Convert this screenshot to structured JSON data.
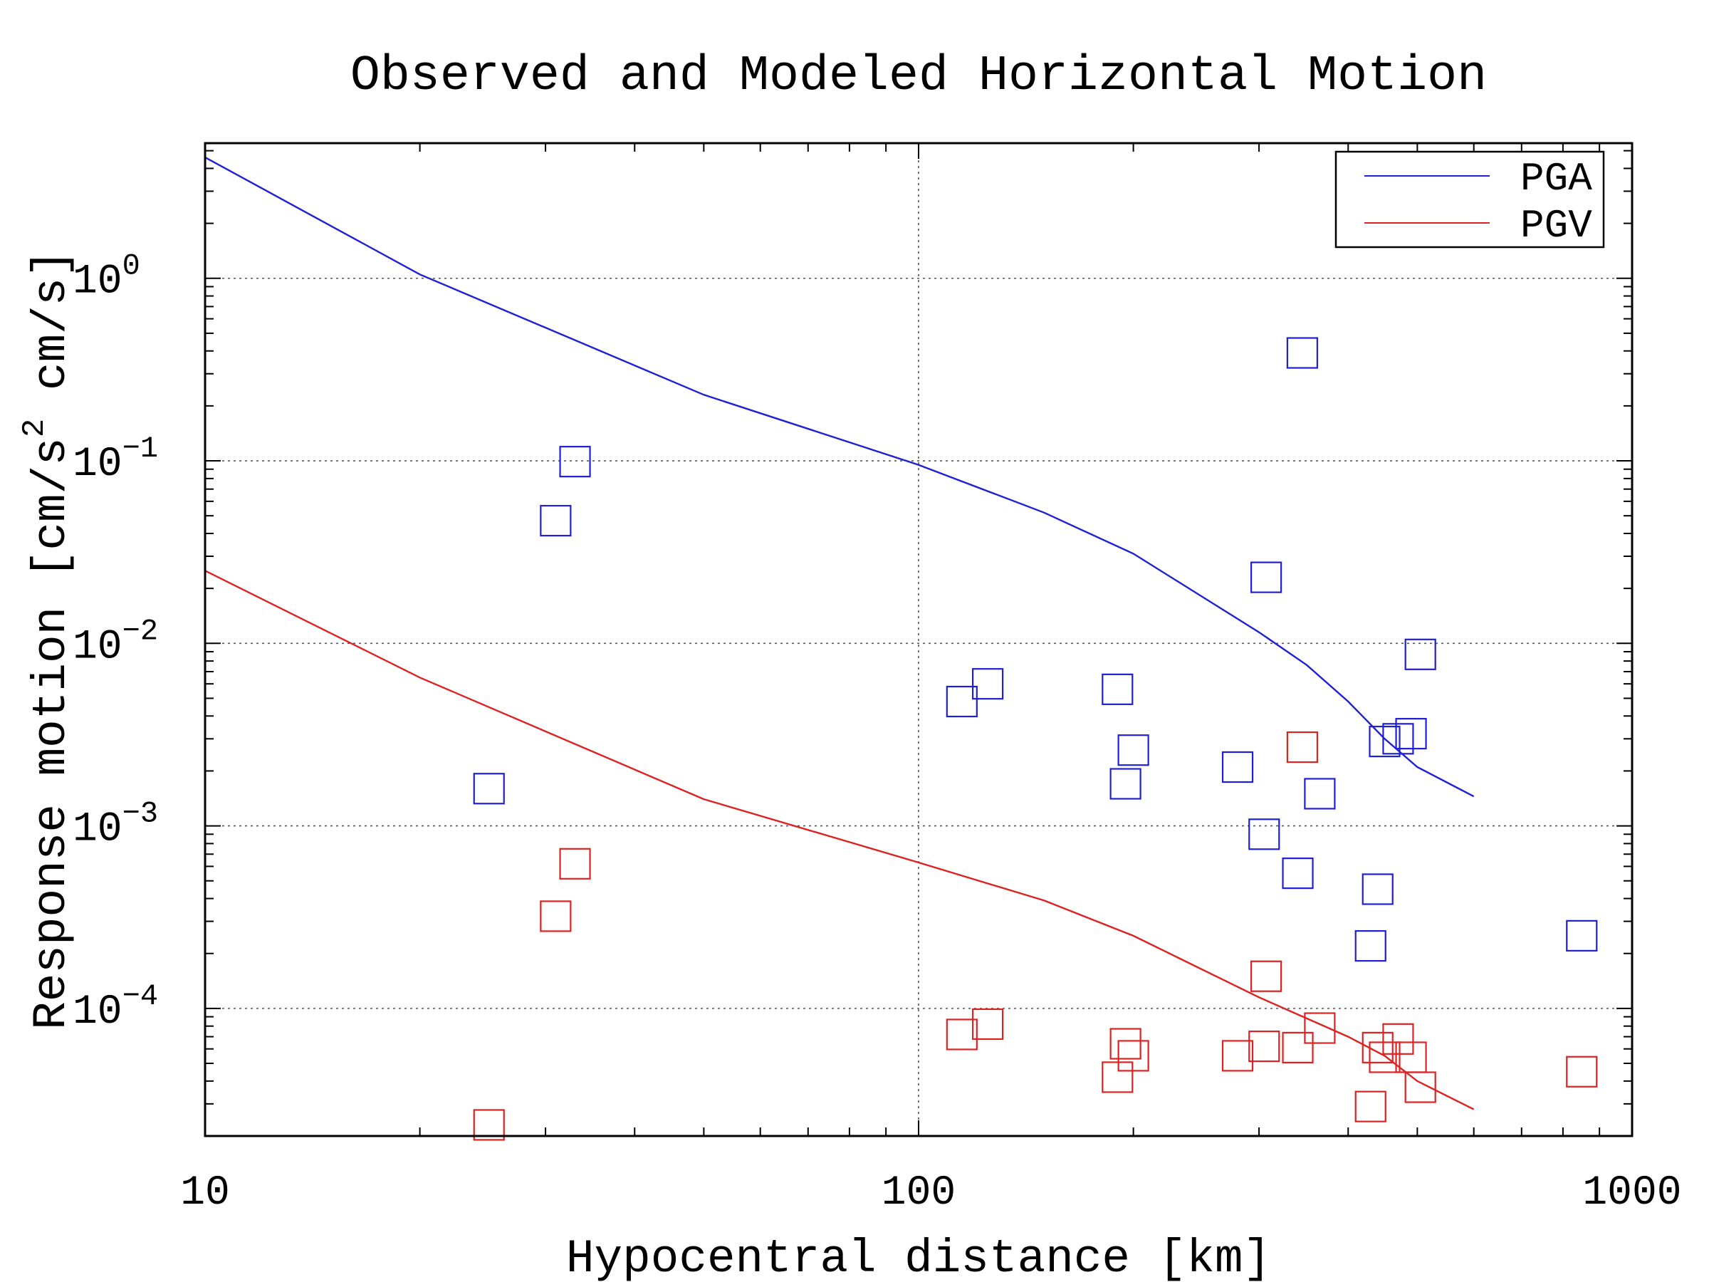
{
  "chart_data": {
    "type": "scatter",
    "title": "Observed and Modeled Horizontal Motion",
    "xlabel": "Hypocentral distance [km]",
    "ylabel": "Response motion [cm/s² cm/s]",
    "ylabel_parts": {
      "pre": "Response motion  [cm/s",
      "sup": "2",
      "post": "   cm/s]"
    },
    "x_scale": "log",
    "y_scale": "log",
    "xlim": [
      10,
      1000
    ],
    "ylim": [
      2e-05,
      5.5
    ],
    "x_ticks": [
      {
        "value": 10,
        "label": "10"
      },
      {
        "value": 100,
        "label": "100"
      },
      {
        "value": 1000,
        "label": "1000"
      }
    ],
    "y_ticks": [
      {
        "value": 1,
        "base": "10",
        "exp": "0"
      },
      {
        "value": 0.1,
        "base": "10",
        "exp": "−1"
      },
      {
        "value": 0.01,
        "base": "10",
        "exp": "−2"
      },
      {
        "value": 0.001,
        "base": "10",
        "exp": "−3"
      },
      {
        "value": 0.0001,
        "base": "10",
        "exp": "−4"
      }
    ],
    "grid": true,
    "legend_position": "top-right",
    "series": [
      {
        "name": "PGA",
        "color": "#1f1fd6",
        "curve": [
          [
            10,
            4.6
          ],
          [
            20,
            1.05
          ],
          [
            50,
            0.23
          ],
          [
            100,
            0.095
          ],
          [
            150,
            0.052
          ],
          [
            200,
            0.031
          ],
          [
            300,
            0.0115
          ],
          [
            350,
            0.0076
          ],
          [
            400,
            0.0048
          ],
          [
            450,
            0.003
          ],
          [
            500,
            0.0021
          ],
          [
            600,
            0.00145
          ]
        ],
        "points": [
          [
            25,
            0.0016
          ],
          [
            31,
            0.047
          ],
          [
            33,
            0.099
          ],
          [
            115,
            0.0048
          ],
          [
            125,
            0.006
          ],
          [
            190,
            0.0056
          ],
          [
            195,
            0.0017
          ],
          [
            200,
            0.0026
          ],
          [
            280,
            0.0021
          ],
          [
            305,
            0.0009
          ],
          [
            307,
            0.023
          ],
          [
            340,
            0.00055
          ],
          [
            345,
            0.39
          ],
          [
            365,
            0.0015
          ],
          [
            430,
            0.00022
          ],
          [
            440,
            0.00045
          ],
          [
            450,
            0.0029
          ],
          [
            470,
            0.003
          ],
          [
            490,
            0.0032
          ],
          [
            505,
            0.0087
          ],
          [
            850,
            0.00025
          ]
        ]
      },
      {
        "name": "PGV",
        "color": "#dd2222",
        "curve": [
          [
            10,
            0.025
          ],
          [
            20,
            0.0065
          ],
          [
            50,
            0.0014
          ],
          [
            100,
            0.00063
          ],
          [
            150,
            0.00039
          ],
          [
            200,
            0.00025
          ],
          [
            300,
            0.000115
          ],
          [
            400,
            7e-05
          ],
          [
            450,
            5.5e-05
          ],
          [
            500,
            4e-05
          ],
          [
            600,
            2.8e-05
          ]
        ],
        "points": [
          [
            25,
            2.3e-05
          ],
          [
            31,
            0.00032
          ],
          [
            33,
            0.00062
          ],
          [
            115,
            7.2e-05
          ],
          [
            125,
            8.2e-05
          ],
          [
            190,
            4.2e-05
          ],
          [
            195,
            6.4e-05
          ],
          [
            200,
            5.5e-05
          ],
          [
            280,
            5.5e-05
          ],
          [
            305,
            6.2e-05
          ],
          [
            307,
            0.00015
          ],
          [
            340,
            6.1e-05
          ],
          [
            345,
            0.0027
          ],
          [
            365,
            7.8e-05
          ],
          [
            430,
            2.9e-05
          ],
          [
            440,
            6.1e-05
          ],
          [
            450,
            5.4e-05
          ],
          [
            470,
            6.8e-05
          ],
          [
            490,
            5.4e-05
          ],
          [
            505,
            3.7e-05
          ],
          [
            850,
            4.5e-05
          ]
        ]
      }
    ]
  }
}
